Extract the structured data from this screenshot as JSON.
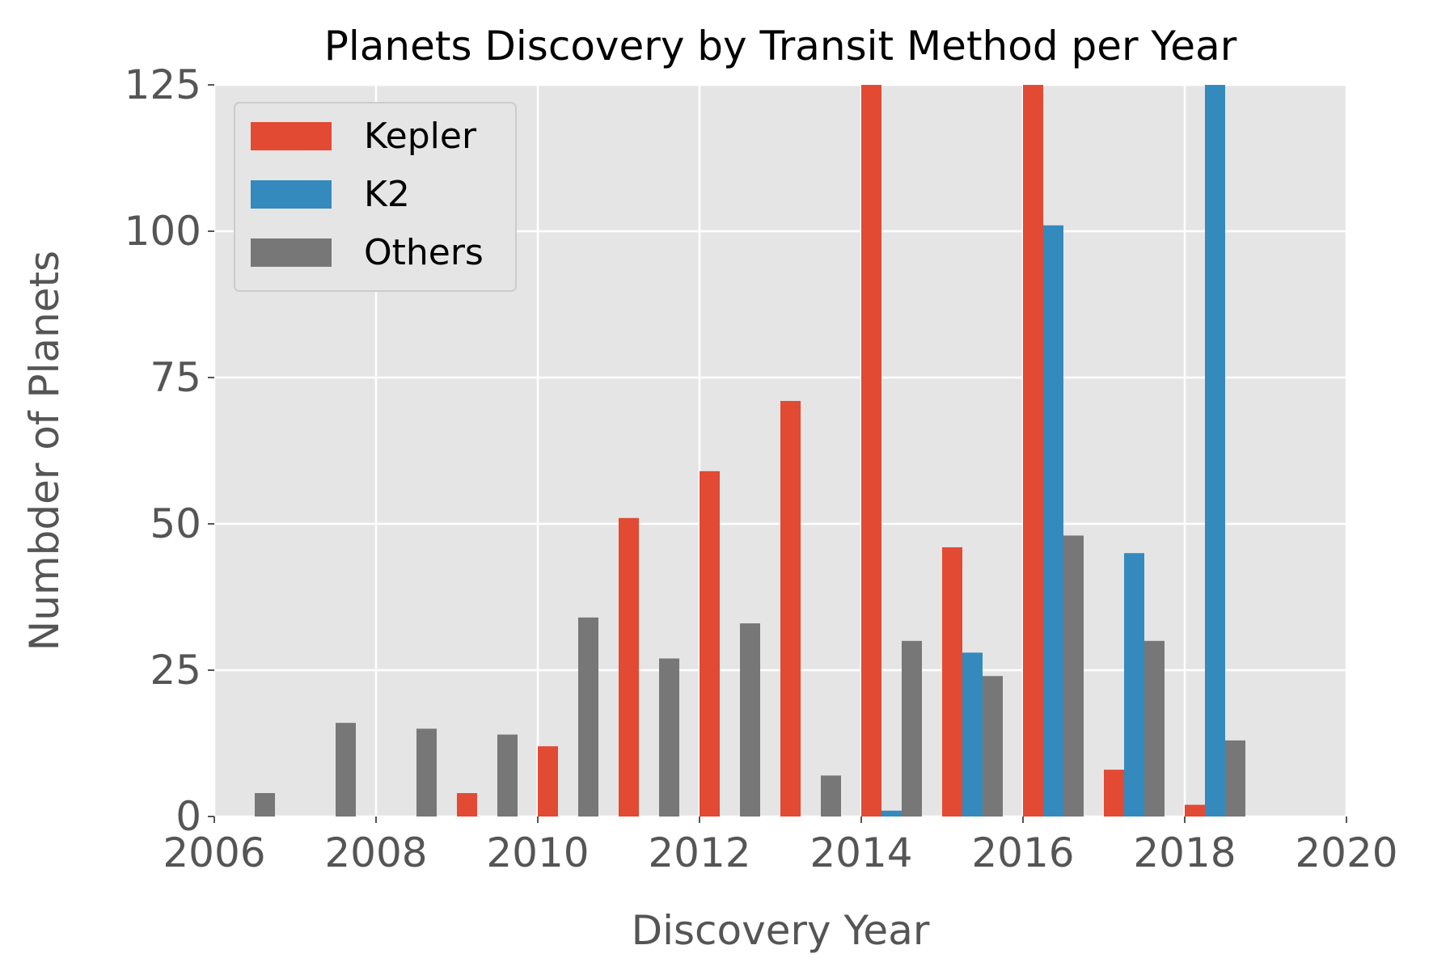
{
  "chart_data": {
    "type": "bar",
    "title": "Planets Discovery by Transit Method per Year",
    "xlabel": "Discovery Year",
    "ylabel": "Numbder of Planets",
    "xlim": [
      2006,
      2020
    ],
    "ylim": [
      0,
      125
    ],
    "xticks": [
      "2006",
      "2008",
      "2010",
      "2012",
      "2014",
      "2016",
      "2018",
      "2020"
    ],
    "yticks": [
      "0",
      "25",
      "50",
      "75",
      "100",
      "125"
    ],
    "grid": true,
    "legend_position": "top-left",
    "background_color": "#e5e5e5",
    "grid_color": "#ffffff",
    "years": [
      2006,
      2007,
      2008,
      2009,
      2010,
      2011,
      2012,
      2013,
      2014,
      2015,
      2016,
      2017,
      2018
    ],
    "series": [
      {
        "name": "Kepler",
        "color": "#e24a33",
        "values": [
          0,
          0,
          0,
          4,
          12,
          51,
          59,
          71,
          125,
          46,
          125,
          8,
          2
        ]
      },
      {
        "name": "K2",
        "color": "#348abd",
        "values": [
          0,
          0,
          0,
          0,
          0,
          0,
          0,
          0,
          1,
          28,
          101,
          45,
          125
        ]
      },
      {
        "name": "Others",
        "color": "#777777",
        "values": [
          4,
          16,
          15,
          14,
          34,
          27,
          33,
          7,
          30,
          24,
          48,
          30,
          13
        ]
      }
    ]
  }
}
